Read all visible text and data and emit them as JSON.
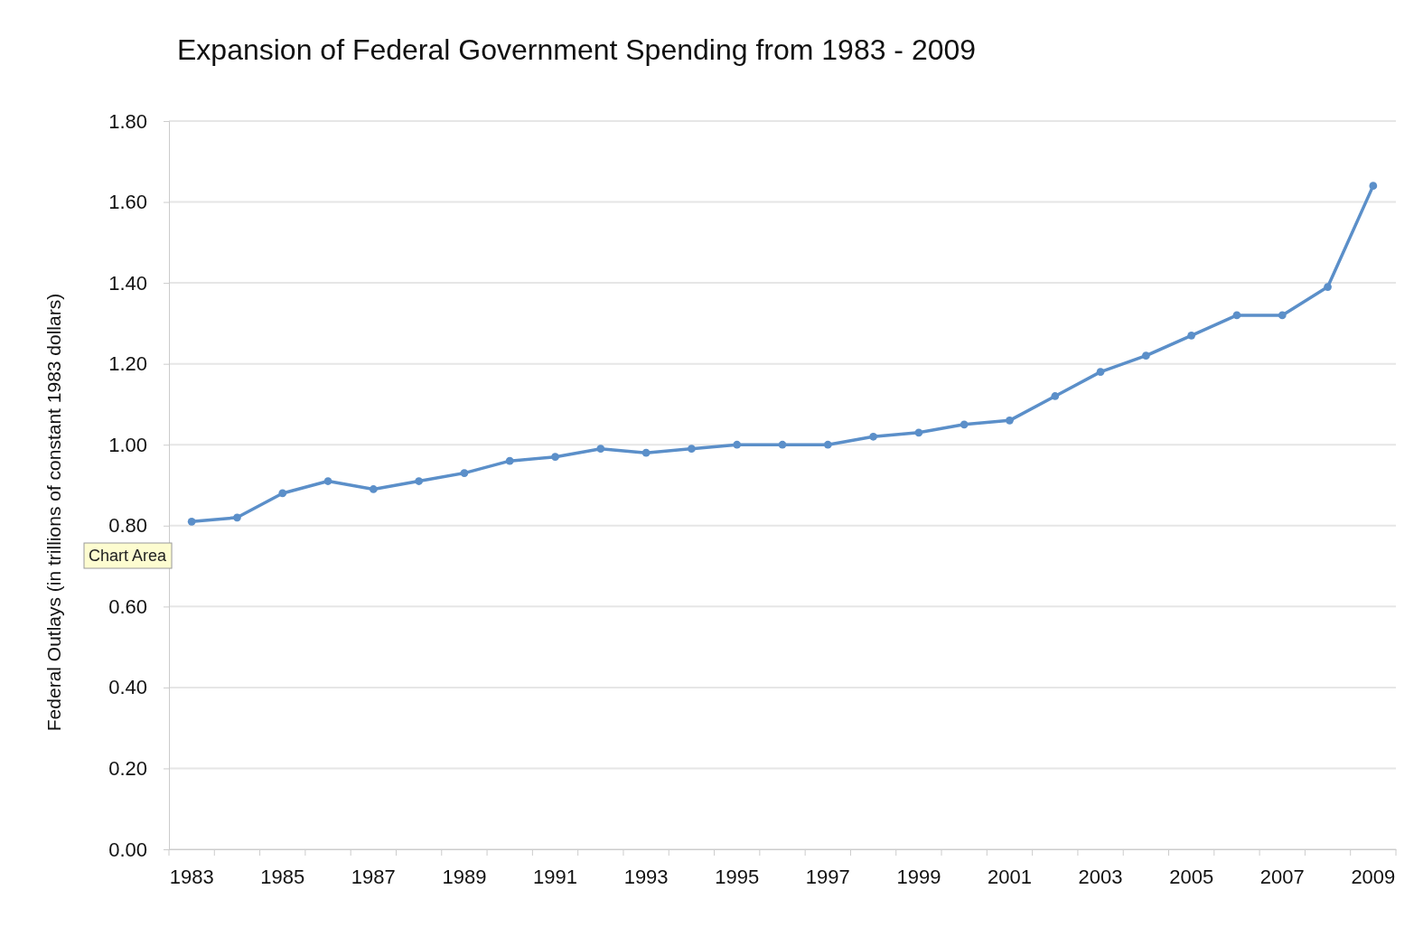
{
  "chart_data": {
    "type": "line",
    "title": "Expansion of Federal Government Spending from 1983 - 2009",
    "ylabel": "Federal Outlays (in trillions of constant 1983 dollars)",
    "categories": [
      "1983",
      null,
      "1985",
      null,
      "1987",
      null,
      "1989",
      null,
      "1991",
      null,
      "1993",
      null,
      "1995",
      null,
      "1997",
      null,
      "1999",
      null,
      "2001",
      null,
      "2003",
      null,
      "2005",
      null,
      "2007",
      null,
      "2009"
    ],
    "series": [
      {
        "color": "#5b8fc9",
        "values": [
          0.81,
          0.82,
          0.88,
          0.91,
          0.89,
          0.91,
          0.93,
          0.96,
          0.97,
          0.99,
          0.98,
          0.99,
          1.0,
          1.0,
          1.0,
          1.02,
          1.03,
          1.05,
          1.06,
          1.12,
          1.18,
          1.22,
          1.27,
          1.32,
          1.32,
          1.39,
          1.64
        ]
      }
    ],
    "ylim": [
      0,
      1.8
    ],
    "yticks": [
      {
        "value": 0,
        "label": "0.00"
      },
      {
        "value": 0.2,
        "label": "0.20"
      },
      {
        "value": 0.4,
        "label": "0.40"
      },
      {
        "value": 0.6,
        "label": "0.60"
      },
      {
        "value": 0.8,
        "label": "0.80"
      },
      {
        "value": 1,
        "label": "1.00"
      },
      {
        "value": 1.2,
        "label": "1.20"
      },
      {
        "value": 1.4,
        "label": "1.40"
      },
      {
        "value": 1.6,
        "label": "1.60"
      },
      {
        "value": 1.8,
        "label": "1.80"
      }
    ],
    "grid": "y",
    "marker": "circle",
    "line_style": "solid",
    "annotations": [
      "Chart Area"
    ]
  }
}
